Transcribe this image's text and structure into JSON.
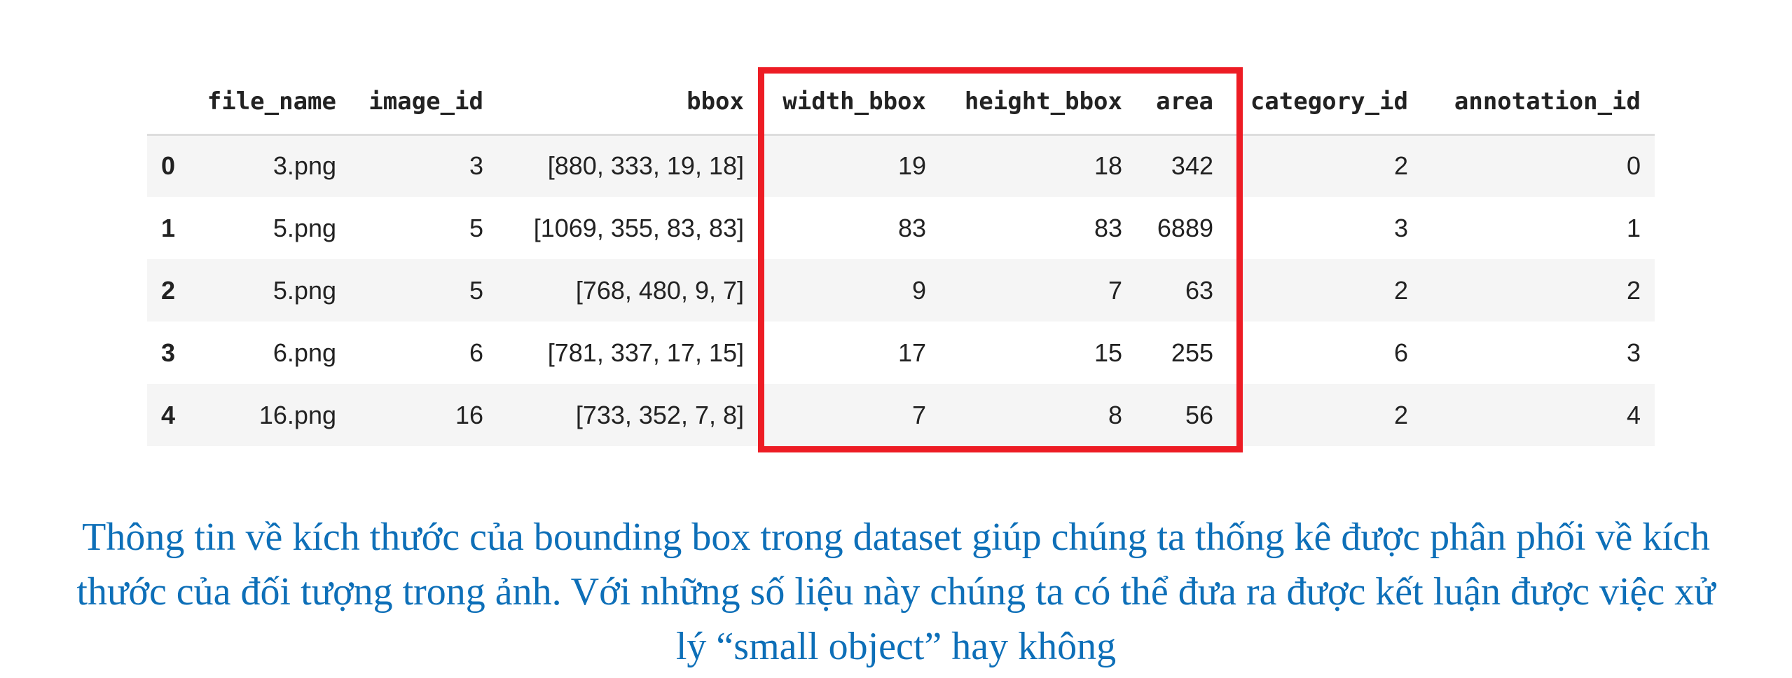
{
  "table": {
    "columns": [
      "",
      "file_name",
      "image_id",
      "bbox",
      "width_bbox",
      "height_bbox",
      "area",
      "category_id",
      "annotation_id"
    ],
    "rows": [
      {
        "index": "0",
        "file_name": "3.png",
        "image_id": "3",
        "bbox": "[880, 333, 19, 18]",
        "width_bbox": "19",
        "height_bbox": "18",
        "area": "342",
        "category_id": "2",
        "annotation_id": "0"
      },
      {
        "index": "1",
        "file_name": "5.png",
        "image_id": "5",
        "bbox": "[1069, 355, 83, 83]",
        "width_bbox": "83",
        "height_bbox": "83",
        "area": "6889",
        "category_id": "3",
        "annotation_id": "1"
      },
      {
        "index": "2",
        "file_name": "5.png",
        "image_id": "5",
        "bbox": "[768, 480, 9, 7]",
        "width_bbox": "9",
        "height_bbox": "7",
        "area": "63",
        "category_id": "2",
        "annotation_id": "2"
      },
      {
        "index": "3",
        "file_name": "6.png",
        "image_id": "6",
        "bbox": "[781, 337, 17, 15]",
        "width_bbox": "17",
        "height_bbox": "15",
        "area": "255",
        "category_id": "6",
        "annotation_id": "3"
      },
      {
        "index": "4",
        "file_name": "16.png",
        "image_id": "16",
        "bbox": "[733, 352, 7, 8]",
        "width_bbox": "7",
        "height_bbox": "8",
        "area": "56",
        "category_id": "2",
        "annotation_id": "4"
      }
    ]
  },
  "highlight_color": "#ed1c24",
  "caption_color": "#0d6fb8",
  "caption": {
    "line1": "Thông tin về kích thước của bounding box trong dataset giúp chúng ta thống kê được phân phối về kích",
    "line2": "thước của đối tượng trong ảnh. Với những số liệu này chúng ta có thể đưa ra được kết luận được việc xử",
    "line3": "lý “small object” hay không"
  }
}
